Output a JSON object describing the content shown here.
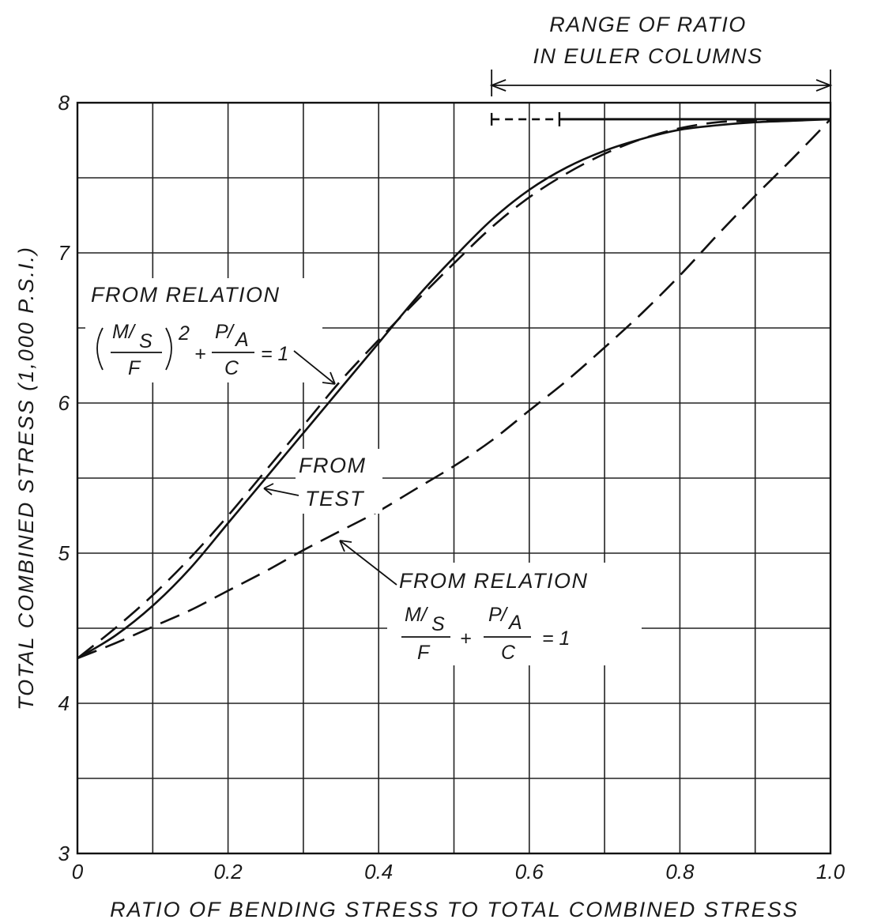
{
  "chart_data": {
    "type": "line",
    "title": "",
    "xlabel": "RATIO OF BENDING STRESS TO TOTAL COMBINED STRESS",
    "ylabel": "TOTAL COMBINED STRESS (1,000 P.S.I.)",
    "xlim": [
      0,
      1.0
    ],
    "ylim": [
      3,
      8
    ],
    "x_ticks": [
      "0",
      "0.2",
      "0.4",
      "0.6",
      "0.8",
      "1.0"
    ],
    "y_ticks": [
      "3",
      "4",
      "5",
      "6",
      "7",
      "8"
    ],
    "grid": true,
    "series": [
      {
        "name": "FROM TEST",
        "style": "solid",
        "x": [
          0,
          0.05,
          0.1,
          0.15,
          0.2,
          0.25,
          0.3,
          0.35,
          0.4,
          0.45,
          0.5,
          0.55,
          0.6,
          0.65,
          0.7,
          0.75,
          0.8,
          0.85,
          0.9,
          0.95,
          1.0
        ],
        "y": [
          4.3,
          4.45,
          4.65,
          4.9,
          5.2,
          5.5,
          5.8,
          6.1,
          6.4,
          6.7,
          6.97,
          7.22,
          7.42,
          7.57,
          7.68,
          7.76,
          7.82,
          7.85,
          7.87,
          7.88,
          7.89
        ]
      },
      {
        "name": "FROM RELATION (M/S / F)^2 + (P/A / C) = 1",
        "style": "dashed",
        "x": [
          0,
          0.05,
          0.1,
          0.15,
          0.2,
          0.25,
          0.3,
          0.35,
          0.4,
          0.45,
          0.5,
          0.55,
          0.6,
          0.65,
          0.7,
          0.75,
          0.8,
          0.85,
          0.9,
          0.95,
          1.0
        ],
        "y": [
          4.3,
          4.5,
          4.72,
          4.97,
          5.25,
          5.55,
          5.85,
          6.15,
          6.42,
          6.68,
          6.93,
          7.17,
          7.37,
          7.53,
          7.66,
          7.76,
          7.83,
          7.87,
          7.88,
          7.89,
          7.89
        ]
      },
      {
        "name": "FROM RELATION (M/S / F) + (P/A / C) = 1",
        "style": "dashed",
        "x": [
          0,
          0.05,
          0.1,
          0.15,
          0.2,
          0.25,
          0.3,
          0.35,
          0.4,
          0.45,
          0.5,
          0.55,
          0.6,
          0.65,
          0.7,
          0.75,
          0.8,
          0.85,
          0.9,
          0.95,
          1.0
        ],
        "y": [
          4.3,
          4.4,
          4.51,
          4.62,
          4.75,
          4.88,
          5.02,
          5.15,
          5.28,
          5.43,
          5.58,
          5.75,
          5.95,
          6.15,
          6.37,
          6.6,
          6.85,
          7.12,
          7.38,
          7.63,
          7.89
        ]
      }
    ],
    "euler_range": {
      "label_line1": "RANGE OF RATIO",
      "label_line2": "IN EULER COLUMNS",
      "x_start": 0.55,
      "x_end": 1.0,
      "level_y": 7.89,
      "solid_from_x": 0.64
    },
    "annotations": {
      "relation_1_heading": "FROM RELATION",
      "relation_1_m": "M",
      "relation_1_s": "S",
      "relation_1_f": "F",
      "relation_1_exp": "2",
      "relation_1_p": "P",
      "relation_1_a": "A",
      "relation_1_c": "C",
      "relation_1_eq": "= 1",
      "test_line1": "FROM",
      "test_line2": "TEST",
      "relation_2_heading": "FROM RELATION",
      "relation_2_m": "M",
      "relation_2_s": "S",
      "relation_2_f": "F",
      "relation_2_p": "P",
      "relation_2_a": "A",
      "relation_2_c": "C",
      "relation_2_eq": "= 1"
    }
  }
}
